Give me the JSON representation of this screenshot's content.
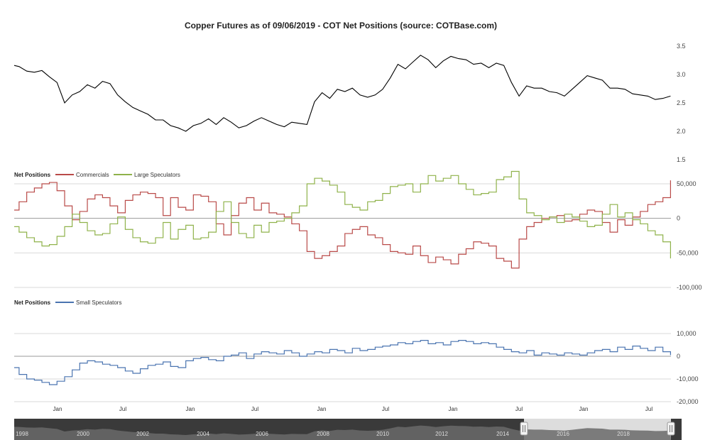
{
  "chart_data": [
    {
      "type": "line",
      "title": "Copper Futures as of 09/06/2019 - COT Net Positions (source: COTBase.com)",
      "x": [
        "1998-01",
        "1998-03",
        "1998-06",
        "1998-09",
        "1998-12",
        "1999-03",
        "1999-06",
        "1999-09",
        "1999-12",
        "2000-03",
        "2000-06",
        "2000-09",
        "2000-12",
        "2001-03",
        "2001-06",
        "2001-09",
        "2001-12",
        "2002-03",
        "2002-06",
        "2002-09",
        "2002-12",
        "2003-03",
        "2003-06",
        "2003-09",
        "2003-12",
        "2004-03",
        "2004-06",
        "2004-09",
        "2004-12",
        "2005-03",
        "2005-06",
        "2005-09",
        "2005-12",
        "2006-03",
        "2006-06",
        "2006-09",
        "2006-12",
        "2007-03",
        "2007-06",
        "2007-09",
        "2007-12",
        "2008-03",
        "2008-06",
        "2008-09",
        "2008-12",
        "2009-03",
        "2009-06",
        "2009-09",
        "2009-12",
        "2010-03",
        "2010-06",
        "2010-09",
        "2010-12",
        "2011-03",
        "2011-06",
        "2011-09",
        "2011-12",
        "2012-03",
        "2012-06",
        "2012-09",
        "2012-12",
        "2013-03",
        "2013-06",
        "2013-09",
        "2013-12",
        "2014-03",
        "2014-06",
        "2014-09",
        "2014-12",
        "2015-03",
        "2015-06",
        "2015-09",
        "2015-12",
        "2016-03",
        "2016-06",
        "2016-09",
        "2016-12",
        "2017-03",
        "2017-06",
        "2017-09",
        "2017-12",
        "2018-03",
        "2018-06",
        "2018-09",
        "2018-12",
        "2019-03",
        "2019-06",
        "2019-09"
      ],
      "series": [
        {
          "values": [
            3.16,
            3.14,
            3.06,
            3.04,
            3.07,
            2.96,
            2.86,
            2.5,
            2.64,
            2.7,
            2.82,
            2.76,
            2.88,
            2.84,
            2.64,
            2.52,
            2.42,
            2.36,
            2.3,
            2.2,
            2.2,
            2.1,
            2.06,
            2.0,
            2.1,
            2.14,
            2.22,
            2.12,
            2.24,
            2.16,
            2.06,
            2.1,
            2.18,
            2.24,
            2.18,
            2.12,
            2.08,
            2.16,
            2.14,
            2.12,
            2.52,
            2.68,
            2.58,
            2.74,
            2.7,
            2.76,
            2.64,
            2.6,
            2.64,
            2.74,
            2.94,
            3.18,
            3.1,
            3.22,
            3.34,
            3.26,
            3.12,
            3.24,
            3.32,
            3.28,
            3.26,
            3.18,
            3.2,
            3.12,
            3.2,
            3.16,
            2.86,
            2.62,
            2.8,
            2.76,
            2.76,
            2.7,
            2.68,
            2.62,
            2.74,
            2.86,
            2.98,
            2.94,
            2.9,
            2.76,
            2.76,
            2.74,
            2.66,
            2.64,
            2.62,
            2.56,
            2.58,
            2.62
          ]
        }
      ],
      "ylim": [
        1.5,
        3.5
      ],
      "yticks": [
        "3.5",
        "3.0",
        "2.5",
        "2.0",
        "1.5"
      ],
      "color": "#000000"
    },
    {
      "type": "line",
      "ylabel": "Net Positions",
      "ylim": [
        -100000,
        50000
      ],
      "yticks": [
        "50,000",
        "0",
        "-50,000",
        "-100,000"
      ],
      "x": [
        "1998-01",
        "1998-03",
        "1998-06",
        "1998-09",
        "1998-12",
        "1999-03",
        "1999-06",
        "1999-09",
        "1999-12",
        "2000-03",
        "2000-06",
        "2000-09",
        "2000-12",
        "2001-03",
        "2001-06",
        "2001-09",
        "2001-12",
        "2002-03",
        "2002-06",
        "2002-09",
        "2002-12",
        "2003-03",
        "2003-06",
        "2003-09",
        "2003-12",
        "2004-03",
        "2004-06",
        "2004-09",
        "2004-12",
        "2005-03",
        "2005-06",
        "2005-09",
        "2005-12",
        "2006-03",
        "2006-06",
        "2006-09",
        "2006-12",
        "2007-03",
        "2007-06",
        "2007-09",
        "2007-12",
        "2008-03",
        "2008-06",
        "2008-09",
        "2008-12",
        "2009-03",
        "2009-06",
        "2009-09",
        "2009-12",
        "2010-03",
        "2010-06",
        "2010-09",
        "2010-12",
        "2011-03",
        "2011-06",
        "2011-09",
        "2011-12",
        "2012-03",
        "2012-06",
        "2012-09",
        "2012-12",
        "2013-03",
        "2013-06",
        "2013-09",
        "2013-12",
        "2014-03",
        "2014-06",
        "2014-09",
        "2014-12",
        "2015-03",
        "2015-06",
        "2015-09",
        "2015-12",
        "2016-03",
        "2016-06",
        "2016-09",
        "2016-12",
        "2017-03",
        "2017-06",
        "2017-09",
        "2017-12",
        "2018-03",
        "2018-06",
        "2018-09",
        "2018-12",
        "2019-03",
        "2019-06",
        "2019-09"
      ],
      "series": [
        {
          "name": "Commercials",
          "color": "#b94a48",
          "values": [
            12000,
            24000,
            38000,
            44000,
            50000,
            52000,
            40000,
            18000,
            -2000,
            10000,
            28000,
            34000,
            30000,
            18000,
            8000,
            26000,
            34000,
            38000,
            36000,
            30000,
            4000,
            30000,
            16000,
            12000,
            34000,
            32000,
            24000,
            -8000,
            -24000,
            4000,
            22000,
            30000,
            12000,
            22000,
            8000,
            6000,
            2000,
            -8000,
            -18000,
            -48000,
            -58000,
            -54000,
            -48000,
            -40000,
            -22000,
            -16000,
            -12000,
            -24000,
            -28000,
            -38000,
            -48000,
            -50000,
            -52000,
            -40000,
            -54000,
            -64000,
            -56000,
            -60000,
            -66000,
            -52000,
            -44000,
            -34000,
            -36000,
            -40000,
            -58000,
            -62000,
            -72000,
            -30000,
            -12000,
            -6000,
            0,
            2000,
            4000,
            -4000,
            -2000,
            6000,
            12000,
            10000,
            -6000,
            -20000,
            -2000,
            -10000,
            2000,
            10000,
            20000,
            24000,
            30000,
            55000
          ]
        },
        {
          "name": "Large Speculators",
          "color": "#8fb24a",
          "values": [
            -12000,
            -20000,
            -28000,
            -34000,
            -40000,
            -38000,
            -26000,
            -12000,
            6000,
            -6000,
            -18000,
            -24000,
            -22000,
            -8000,
            2000,
            -16000,
            -28000,
            -34000,
            -36000,
            -28000,
            -6000,
            -30000,
            -16000,
            -10000,
            -30000,
            -28000,
            -20000,
            10000,
            24000,
            -6000,
            -22000,
            -28000,
            -10000,
            -20000,
            -6000,
            -4000,
            0,
            8000,
            18000,
            50000,
            58000,
            54000,
            48000,
            38000,
            20000,
            16000,
            12000,
            24000,
            26000,
            36000,
            46000,
            48000,
            50000,
            38000,
            50000,
            62000,
            54000,
            58000,
            62000,
            50000,
            42000,
            34000,
            36000,
            38000,
            56000,
            60000,
            68000,
            28000,
            8000,
            4000,
            -2000,
            2000,
            -6000,
            6000,
            2000,
            -4000,
            -12000,
            -10000,
            6000,
            20000,
            2000,
            8000,
            -2000,
            -8000,
            -18000,
            -24000,
            -34000,
            -58000
          ]
        }
      ]
    },
    {
      "type": "line",
      "ylabel": "Net Positions",
      "ylim": [
        -20000,
        10000
      ],
      "yticks": [
        "10,000",
        "0",
        "-10,000",
        "-20,000"
      ],
      "x": [
        "1998-01",
        "1998-03",
        "1998-06",
        "1998-09",
        "1998-12",
        "1999-03",
        "1999-06",
        "1999-09",
        "1999-12",
        "2000-03",
        "2000-06",
        "2000-09",
        "2000-12",
        "2001-03",
        "2001-06",
        "2001-09",
        "2001-12",
        "2002-03",
        "2002-06",
        "2002-09",
        "2002-12",
        "2003-03",
        "2003-06",
        "2003-09",
        "2003-12",
        "2004-03",
        "2004-06",
        "2004-09",
        "2004-12",
        "2005-03",
        "2005-06",
        "2005-09",
        "2005-12",
        "2006-03",
        "2006-06",
        "2006-09",
        "2006-12",
        "2007-03",
        "2007-06",
        "2007-09",
        "2007-12",
        "2008-03",
        "2008-06",
        "2008-09",
        "2008-12",
        "2009-03",
        "2009-06",
        "2009-09",
        "2009-12",
        "2010-03",
        "2010-06",
        "2010-09",
        "2010-12",
        "2011-03",
        "2011-06",
        "2011-09",
        "2011-12",
        "2012-03",
        "2012-06",
        "2012-09",
        "2012-12",
        "2013-03",
        "2013-06",
        "2013-09",
        "2013-12",
        "2014-03",
        "2014-06",
        "2014-09",
        "2014-12",
        "2015-03",
        "2015-06",
        "2015-09",
        "2015-12",
        "2016-03",
        "2016-06",
        "2016-09",
        "2016-12",
        "2017-03",
        "2017-06",
        "2017-09",
        "2017-12",
        "2018-03",
        "2018-06",
        "2018-09",
        "2018-12",
        "2019-03",
        "2019-06",
        "2019-09"
      ],
      "series": [
        {
          "name": "Small Speculators",
          "color": "#4a74b0",
          "values": [
            -5000,
            -8000,
            -10000,
            -10500,
            -11500,
            -12500,
            -11000,
            -9000,
            -6000,
            -3000,
            -2000,
            -2500,
            -3500,
            -4000,
            -5000,
            -6500,
            -7500,
            -5500,
            -4000,
            -3500,
            -2500,
            -4500,
            -5000,
            -2000,
            -1000,
            -500,
            -1500,
            -2000,
            0,
            500,
            1500,
            -1000,
            1000,
            2000,
            1500,
            1000,
            2500,
            1500,
            0,
            1000,
            2000,
            1500,
            3000,
            2500,
            1500,
            3500,
            2500,
            3000,
            4000,
            4500,
            5000,
            6000,
            5500,
            6500,
            7000,
            5500,
            6000,
            5000,
            6500,
            7000,
            6500,
            5500,
            6000,
            5500,
            4000,
            3000,
            2000,
            1500,
            2500,
            500,
            1500,
            1000,
            500,
            1500,
            1000,
            500,
            1500,
            2500,
            3000,
            2000,
            4000,
            3000,
            4500,
            3500,
            2500,
            4000,
            2000,
            500
          ]
        }
      ]
    }
  ],
  "panels": {
    "commercial_label": "Net Positions",
    "small_label": "Net Positions"
  },
  "legend": {
    "commercials": "Commercials",
    "large_speculators": "Large Speculators",
    "small_speculators": "Small Speculators"
  },
  "x_axis": {
    "labels": [
      "Jan",
      "Jul",
      "Jan",
      "Jul",
      "Jan",
      "Jul",
      "Jan",
      "Jul",
      "Jan",
      "Jul"
    ]
  },
  "navigator": {
    "labels": [
      "1998",
      "2000",
      "2002",
      "2004",
      "2006",
      "2008",
      "2010",
      "2012",
      "2014",
      "2016",
      "2018"
    ],
    "background_color": "#3a3a3a",
    "selection_color": "#e6e6e6"
  }
}
